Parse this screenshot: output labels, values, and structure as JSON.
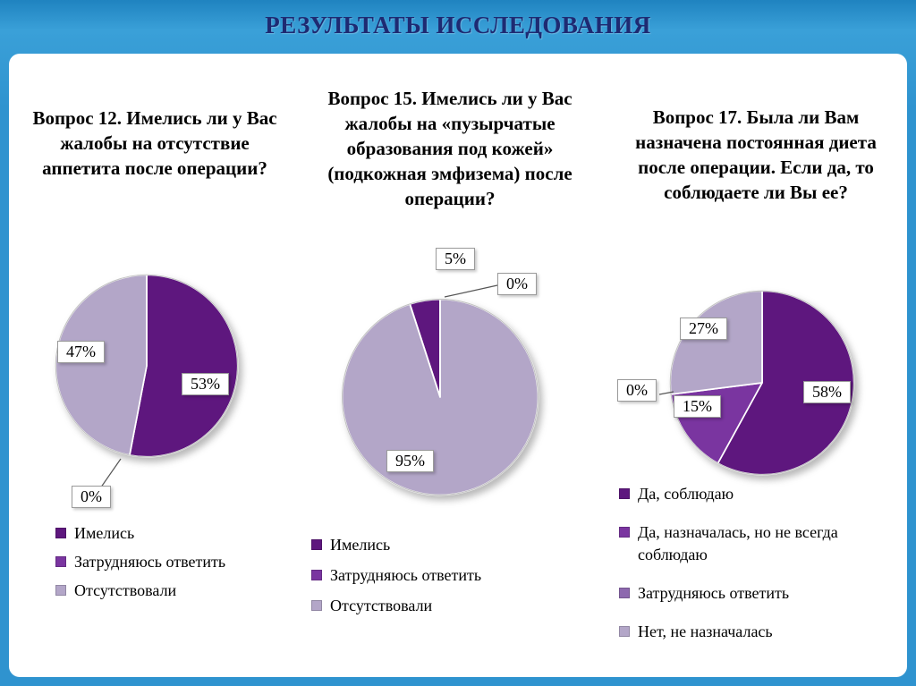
{
  "header": {
    "title": "РЕЗУЛЬТАТЫ ИССЛЕДОВАНИЯ"
  },
  "colors": {
    "frame_blue": "#2f93cf",
    "dark_purple": "#5E177E",
    "medium_purple": "#7A35A0",
    "light_purple": "#8D68AE",
    "lavender": "#B3A6C8"
  },
  "chart_data": [
    {
      "type": "pie",
      "title": "Вопрос 12. Имелись ли у Вас жалобы на отсутствие аппетита после операции?",
      "start_angle": 0,
      "legend_position": "bottom-left",
      "slices": [
        {
          "label": "Имелись",
          "value": 53,
          "display": "53%",
          "color": "#5E177E"
        },
        {
          "label": "Затрудняюсь ответить",
          "value": 0,
          "display": "0%",
          "color": "#7A35A0"
        },
        {
          "label": "Отсутствовали",
          "value": 47,
          "display": "47%",
          "color": "#B3A6C8"
        }
      ]
    },
    {
      "type": "pie",
      "title": "Вопрос 15. Имелись ли у Вас жалобы на «пузырчатые образования под кожей» (подкожная эмфизема) после операции?",
      "start_angle": -18,
      "legend_position": "bottom-left",
      "slices": [
        {
          "label": "Имелись",
          "value": 5,
          "display": "5%",
          "color": "#5E177E"
        },
        {
          "label": "Затрудняюсь ответить",
          "value": 0,
          "display": "0%",
          "color": "#7A35A0"
        },
        {
          "label": "Отсутствовали",
          "value": 95,
          "display": "95%",
          "color": "#B3A6C8"
        }
      ]
    },
    {
      "type": "pie",
      "title": "Вопрос 17. Была ли Вам назначена постоянная диета после операции. Если да, то соблюдаете ли Вы ее?",
      "start_angle": 0,
      "legend_position": "bottom-left",
      "slices": [
        {
          "label": "Да, соблюдаю",
          "value": 58,
          "display": "58%",
          "color": "#5E177E"
        },
        {
          "label": "Да, назначалась, но не всегда соблюдаю",
          "value": 15,
          "display": "15%",
          "color": "#7A35A0"
        },
        {
          "label": "Затрудняюсь ответить",
          "value": 0,
          "display": "0%",
          "color": "#8D68AE"
        },
        {
          "label": "Нет, не назначалась",
          "value": 27,
          "display": "27%",
          "color": "#B3A6C8"
        }
      ]
    }
  ]
}
